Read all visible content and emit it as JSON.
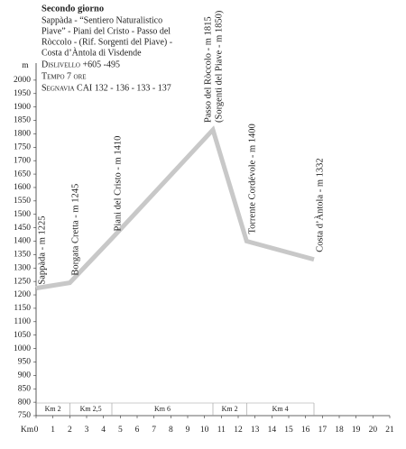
{
  "chart_data": {
    "type": "line",
    "title": "Secondo giorno",
    "description": [
      "Sappàda - “Sentiero Naturalistico",
      "Piave” - Piani del Cristo - Passo del",
      "Ròccolo - (Rif. Sorgenti del Piave) -",
      "Costa d’Àntola di Visdende"
    ],
    "info": [
      "Dislivello +605 -495",
      "Tempo 7 ore",
      "Segnavia CAI 132 - 136 - 133 - 137"
    ],
    "y_label": "m",
    "x_label": "Km",
    "x": [
      0,
      2,
      4.5,
      10.5,
      12.5,
      16.5
    ],
    "values": [
      1225,
      1245,
      1410,
      1815,
      1400,
      1332
    ],
    "point_labels": [
      "Sappàda - m 1225",
      "Borgata Cretta - m 1245",
      "Piani del Cristo - m 1410",
      "Passo del Ròccolo - m 1815",
      "Torrente Cordévole - m 1400",
      "Costa d’Àntola - m 1332"
    ],
    "annotation": "(Sorgenti del Piave - m 1850)",
    "segments": [
      {
        "label": "Km 2",
        "from": 0,
        "to": 2
      },
      {
        "label": "Km 2,5",
        "from": 2,
        "to": 4.5
      },
      {
        "label": "Km 6",
        "from": 4.5,
        "to": 10.5
      },
      {
        "label": "Km 2",
        "from": 10.5,
        "to": 12.5
      },
      {
        "label": "Km 4",
        "from": 12.5,
        "to": 16.5
      }
    ],
    "color": "#c8c8c8",
    "xlim": [
      0,
      21
    ],
    "xticks": [
      0,
      1,
      2,
      3,
      4,
      5,
      6,
      7,
      8,
      9,
      10,
      11,
      12,
      13,
      14,
      15,
      16,
      17,
      18,
      19,
      20,
      21
    ],
    "ylim": [
      750,
      2050
    ],
    "yticks": [
      750,
      800,
      850,
      900,
      950,
      1000,
      1050,
      1100,
      1150,
      1200,
      1250,
      1300,
      1350,
      1400,
      1450,
      1500,
      1550,
      1600,
      1650,
      1700,
      1750,
      1800,
      1850,
      1900,
      1950,
      2000
    ]
  }
}
